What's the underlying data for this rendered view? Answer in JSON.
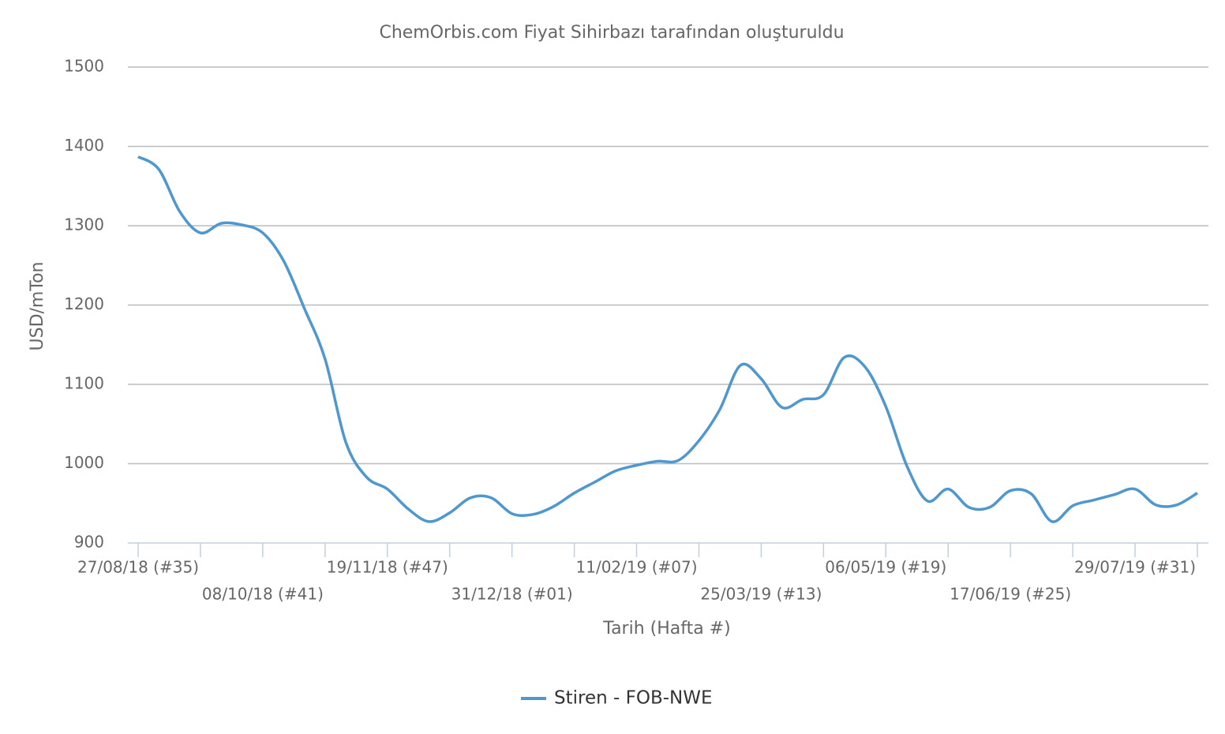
{
  "chart_data": {
    "type": "line",
    "title": "ChemOrbis.com Fiyat Sihirbazı tarafından oluşturuldu",
    "y_label": "USD/mTon",
    "x_label": "Tarih (Hafta #)",
    "categories": [
      "27/08/18 (#35)",
      null,
      null,
      null,
      null,
      null,
      "08/10/18 (#41)",
      null,
      null,
      null,
      null,
      null,
      "19/11/18 (#47)",
      null,
      null,
      null,
      null,
      null,
      "31/12/18 (#01)",
      null,
      null,
      null,
      null,
      null,
      "11/02/19 (#07)",
      null,
      null,
      null,
      null,
      null,
      "25/03/19 (#13)",
      null,
      null,
      null,
      null,
      null,
      "06/05/19 (#19)",
      null,
      null,
      null,
      null,
      null,
      "17/06/19 (#25)",
      null,
      null,
      null,
      null,
      null,
      "29/07/19 (#31)",
      null,
      null,
      null
    ],
    "series": [
      {
        "name": "Stiren - FOB-NWE",
        "color": "#4e97cf",
        "values": [
          1387,
          1371,
          1318,
          1291,
          1303,
          1301,
          1291,
          1256,
          1196,
          1132,
          1027,
          983,
          968,
          943,
          927,
          938,
          957,
          957,
          937,
          936,
          946,
          963,
          977,
          991,
          998,
          1003,
          1004,
          1029,
          1068,
          1124,
          1107,
          1071,
          1081,
          1087,
          1134,
          1122,
          1072,
          998,
          953,
          968,
          945,
          945,
          966,
          962,
          927,
          947,
          954,
          961,
          968,
          948,
          948,
          963
        ]
      }
    ],
    "ylim": [
      900,
      1500
    ],
    "yticks": [
      900,
      1000,
      1100,
      1200,
      1300,
      1400,
      1500
    ],
    "grid": true
  }
}
